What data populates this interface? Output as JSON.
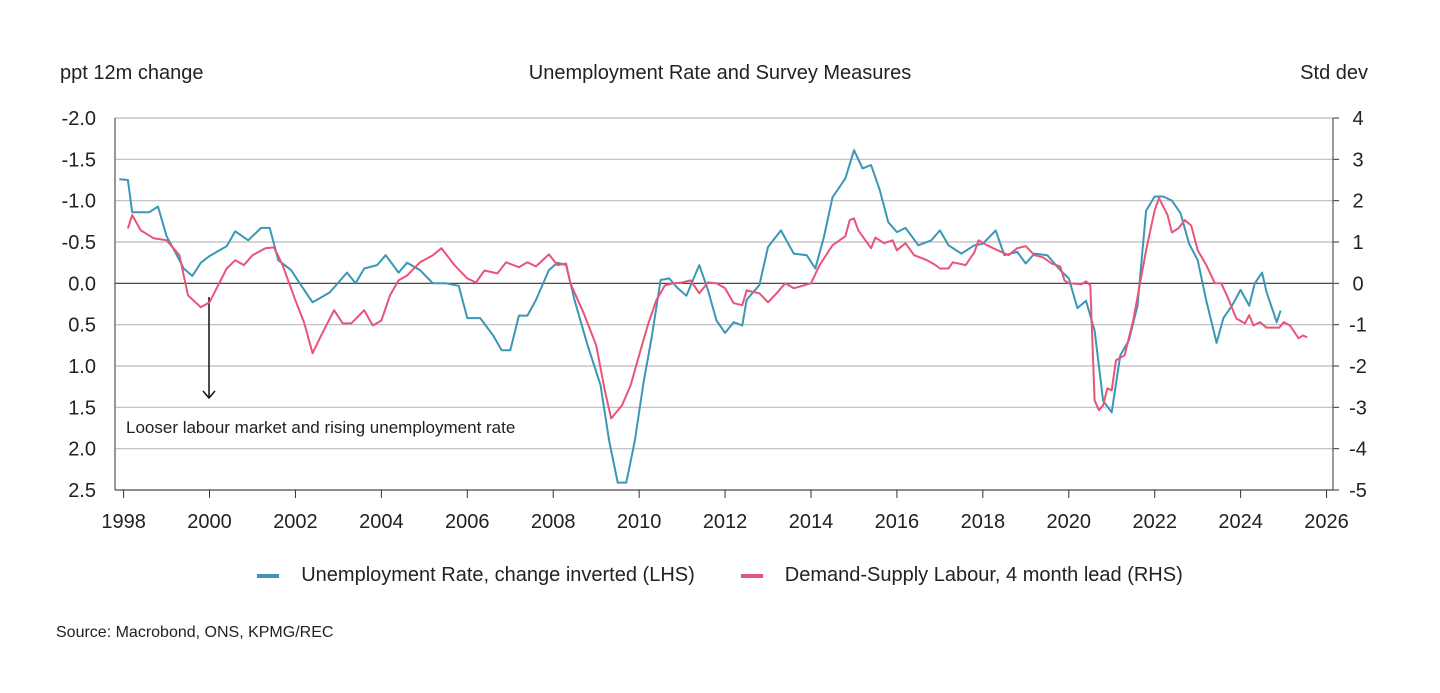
{
  "chart_data": {
    "type": "line",
    "title": "Unemployment Rate and Survey Measures",
    "ylabel_left": "ppt 12m change",
    "ylabel_right": "Std dev",
    "xlabel": "",
    "xlim": [
      1997.8,
      2026.15
    ],
    "ylim_left": [
      -2.0,
      2.5
    ],
    "ylim_left_inverted": true,
    "ylim_right": [
      -5,
      4
    ],
    "x_ticks": [
      "1998",
      "2000",
      "2002",
      "2004",
      "2006",
      "2008",
      "2010",
      "2012",
      "2014",
      "2016",
      "2018",
      "2020",
      "2022",
      "2024",
      "2026"
    ],
    "y_ticks_left": [
      "-2.0",
      "-1.5",
      "-1.0",
      "-0.5",
      "0.0",
      "0.5",
      "1.0",
      "1.5",
      "2.0",
      "2.5"
    ],
    "y_ticks_right": [
      "4",
      "3",
      "2",
      "1",
      "0",
      "-1",
      "-2",
      "-3",
      "-4",
      "-5"
    ],
    "grid": true,
    "legend_position": "bottom",
    "annotation": "Looser labour market and rising unemployment rate",
    "series": [
      {
        "name": "Unemployment Rate, change inverted (LHS)",
        "axis": "left",
        "color": "#3a97b5",
        "x": [
          1997.9,
          1998.1,
          1998.2,
          1998.6,
          1998.8,
          1999.0,
          1999.2,
          1999.4,
          1999.6,
          1999.8,
          2000.0,
          2000.4,
          2000.6,
          2000.9,
          2001.2,
          2001.4,
          2001.6,
          2001.9,
          2002.1,
          2002.4,
          2002.6,
          2002.8,
          2003.0,
          2003.2,
          2003.4,
          2003.6,
          2003.9,
          2004.1,
          2004.4,
          2004.6,
          2004.9,
          2005.2,
          2005.5,
          2005.8,
          2006.0,
          2006.3,
          2006.6,
          2006.8,
          2007.0,
          2007.2,
          2007.4,
          2007.6,
          2007.9,
          2008.1,
          2008.3,
          2008.5,
          2008.8,
          2009.1,
          2009.3,
          2009.5,
          2009.7,
          2009.9,
          2010.1,
          2010.3,
          2010.5,
          2010.7,
          2010.9,
          2011.1,
          2011.3,
          2011.4,
          2011.6,
          2011.8,
          2012.0,
          2012.2,
          2012.4,
          2012.5,
          2012.8,
          2013.0,
          2013.3,
          2013.6,
          2013.9,
          2014.1,
          2014.3,
          2014.5,
          2014.8,
          2015.0,
          2015.2,
          2015.4,
          2015.6,
          2015.8,
          2016.0,
          2016.2,
          2016.5,
          2016.8,
          2017.0,
          2017.2,
          2017.5,
          2017.8,
          2018.0,
          2018.3,
          2018.5,
          2018.8,
          2019.0,
          2019.2,
          2019.5,
          2019.8,
          2020.0,
          2020.2,
          2020.4,
          2020.6,
          2020.8,
          2021.0,
          2021.2,
          2021.4,
          2021.6,
          2021.8,
          2022.0,
          2022.2,
          2022.4,
          2022.6,
          2022.8,
          2023.0,
          2023.2,
          2023.44,
          2023.6,
          2023.8,
          2024.0,
          2024.2,
          2024.33,
          2024.5,
          2024.6,
          2024.84,
          2024.93
        ],
        "y": [
          -1.26,
          -1.25,
          -0.86,
          -0.86,
          -0.93,
          -0.57,
          -0.38,
          -0.18,
          -0.09,
          -0.25,
          -0.33,
          -0.45,
          -0.63,
          -0.52,
          -0.67,
          -0.67,
          -0.28,
          -0.16,
          0.0,
          0.23,
          0.17,
          0.11,
          -0.01,
          -0.13,
          0.0,
          -0.18,
          -0.22,
          -0.34,
          -0.13,
          -0.25,
          -0.16,
          0.0,
          0.0,
          0.03,
          0.42,
          0.42,
          0.63,
          0.81,
          0.81,
          0.39,
          0.39,
          0.2,
          -0.16,
          -0.25,
          -0.22,
          0.21,
          0.75,
          1.23,
          1.9,
          2.41,
          2.41,
          1.9,
          1.21,
          0.63,
          -0.04,
          -0.06,
          0.06,
          0.15,
          -0.1,
          -0.22,
          0.08,
          0.45,
          0.6,
          0.47,
          0.51,
          0.2,
          0.02,
          -0.44,
          -0.64,
          -0.36,
          -0.34,
          -0.18,
          -0.56,
          -1.04,
          -1.27,
          -1.61,
          -1.39,
          -1.43,
          -1.13,
          -0.74,
          -0.62,
          -0.67,
          -0.46,
          -0.52,
          -0.64,
          -0.46,
          -0.36,
          -0.46,
          -0.48,
          -0.64,
          -0.34,
          -0.38,
          -0.24,
          -0.36,
          -0.34,
          -0.16,
          -0.06,
          0.3,
          0.21,
          0.57,
          1.42,
          1.56,
          0.87,
          0.69,
          0.27,
          -0.88,
          -1.05,
          -1.05,
          -1.0,
          -0.85,
          -0.48,
          -0.28,
          0.21,
          0.72,
          0.42,
          0.27,
          0.08,
          0.27,
          0.0,
          -0.13,
          0.1,
          0.47,
          0.33
        ]
      },
      {
        "name": "Demand-Supply Labour, 4 month lead (RHS)",
        "axis": "right",
        "color": "#e8547a",
        "x": [
          1998.1,
          1998.2,
          1998.4,
          1998.7,
          1999.0,
          1999.3,
          1999.5,
          1999.8,
          2000.0,
          2000.2,
          2000.4,
          2000.6,
          2000.8,
          2001.0,
          2001.3,
          2001.5,
          2001.7,
          2002.0,
          2002.2,
          2002.4,
          2002.6,
          2002.9,
          2003.1,
          2003.3,
          2003.6,
          2003.8,
          2004.0,
          2004.2,
          2004.4,
          2004.6,
          2004.9,
          2005.2,
          2005.4,
          2005.7,
          2006.0,
          2006.2,
          2006.4,
          2006.7,
          2006.9,
          2007.2,
          2007.4,
          2007.6,
          2007.9,
          2008.1,
          2008.3,
          2008.4,
          2008.7,
          2009.0,
          2009.2,
          2009.35,
          2009.6,
          2009.8,
          2010.0,
          2010.2,
          2010.4,
          2010.6,
          2010.8,
          2011.0,
          2011.2,
          2011.4,
          2011.6,
          2011.8,
          2012.0,
          2012.2,
          2012.4,
          2012.5,
          2012.8,
          2013.0,
          2013.2,
          2013.4,
          2013.6,
          2014.0,
          2014.2,
          2014.5,
          2014.8,
          2014.9,
          2015.0,
          2015.1,
          2015.4,
          2015.5,
          2015.7,
          2015.9,
          2016.0,
          2016.2,
          2016.4,
          2016.7,
          2016.9,
          2017.0,
          2017.2,
          2017.3,
          2017.6,
          2017.8,
          2017.9,
          2018.1,
          2018.3,
          2018.6,
          2018.8,
          2019.0,
          2019.2,
          2019.4,
          2019.6,
          2019.8,
          2019.9,
          2020.0,
          2020.3,
          2020.4,
          2020.5,
          2020.6,
          2020.7,
          2020.8,
          2020.9,
          2021.0,
          2021.1,
          2021.3,
          2021.5,
          2021.8,
          2022.0,
          2022.1,
          2022.3,
          2022.4,
          2022.55,
          2022.7,
          2022.85,
          2023.0,
          2023.2,
          2023.4,
          2023.55,
          2023.7,
          2023.9,
          2024.1,
          2024.2,
          2024.3,
          2024.45,
          2024.6,
          2024.9,
          2025.0,
          2025.15,
          2025.35,
          2025.45,
          2025.55
        ],
        "y": [
          1.33,
          1.65,
          1.28,
          1.09,
          1.04,
          0.68,
          -0.29,
          -0.58,
          -0.46,
          -0.05,
          0.36,
          0.56,
          0.44,
          0.68,
          0.85,
          0.87,
          0.44,
          -0.41,
          -0.94,
          -1.69,
          -1.26,
          -0.65,
          -0.97,
          -0.97,
          -0.65,
          -1.02,
          -0.9,
          -0.29,
          0.07,
          0.19,
          0.51,
          0.68,
          0.85,
          0.44,
          0.12,
          0.02,
          0.31,
          0.24,
          0.51,
          0.39,
          0.51,
          0.41,
          0.7,
          0.44,
          0.48,
          0.0,
          -0.7,
          -1.5,
          -2.59,
          -3.27,
          -2.95,
          -2.47,
          -1.74,
          -1.02,
          -0.41,
          -0.05,
          0.0,
          0.02,
          0.07,
          -0.24,
          0.02,
          0.0,
          -0.12,
          -0.48,
          -0.53,
          -0.17,
          -0.24,
          -0.46,
          -0.24,
          0.0,
          -0.12,
          0.0,
          0.44,
          0.92,
          1.14,
          1.53,
          1.57,
          1.28,
          0.85,
          1.11,
          0.97,
          1.04,
          0.8,
          0.97,
          0.68,
          0.56,
          0.44,
          0.36,
          0.36,
          0.51,
          0.44,
          0.75,
          1.04,
          0.92,
          0.82,
          0.68,
          0.85,
          0.9,
          0.68,
          0.63,
          0.48,
          0.41,
          0.07,
          0.0,
          -0.02,
          0.05,
          -0.05,
          -2.83,
          -3.07,
          -2.95,
          -2.54,
          -2.59,
          -1.86,
          -1.74,
          -0.9,
          0.8,
          1.77,
          2.06,
          1.65,
          1.23,
          1.33,
          1.53,
          1.4,
          0.8,
          0.44,
          0.0,
          0.0,
          -0.34,
          -0.85,
          -0.97,
          -0.77,
          -1.02,
          -0.94,
          -1.07,
          -1.07,
          -0.94,
          -1.02,
          -1.33,
          -1.26,
          -1.31
        ]
      }
    ],
    "source": "Source: Macrobond, ONS, KPMG/REC"
  }
}
